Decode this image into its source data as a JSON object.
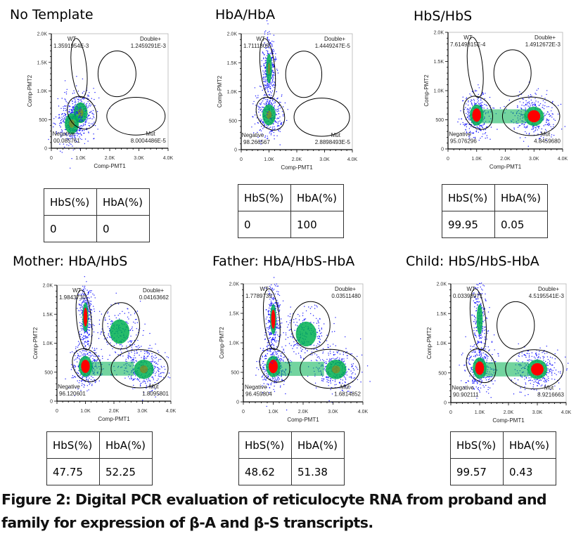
{
  "figure": {
    "caption_line1": "Figure 2: Digital PCR evaluation of reticulocyte RNA from proband and",
    "caption_line2": "family for expression of β-A and β-S transcripts."
  },
  "table_headers": [
    "HbS(%)",
    "HbA(%)"
  ],
  "colors": {
    "gate": "#000000",
    "density_low": "#1a1aff",
    "density_mid": "#00b050",
    "density_high": "#ff0000"
  },
  "chart_data": [
    {
      "type": "scatter",
      "title": "No Template",
      "xlabel": "Comp-PMT1",
      "ylabel": "Comp-PMT2",
      "xlim": [
        0,
        4000
      ],
      "ylim": [
        0,
        2000
      ],
      "xticks": [
        "0",
        "1.0K",
        "2.0K",
        "3.0K",
        "4.0K"
      ],
      "yticks": [
        "0",
        "500",
        "1.0K",
        "1.5K",
        "2.0K"
      ],
      "gates": [
        {
          "name": "WT",
          "value": "1.3591954E-3"
        },
        {
          "name": "Double+",
          "value": "1.2459291E-3"
        },
        {
          "name": "Negative",
          "value": "00.085761"
        },
        {
          "name": "Mut",
          "value": "8.0004486E-5"
        }
      ],
      "clusters": [
        {
          "x": 1000,
          "y": 620,
          "intensity": "mid"
        },
        {
          "x": 700,
          "y": 430,
          "intensity": "mid"
        }
      ],
      "table": {
        "HbS": "0",
        "HbA": "0"
      }
    },
    {
      "type": "scatter",
      "title": "HbA/HbA",
      "xlabel": "Comp-PMT1",
      "ylabel": "Comp-PMT2",
      "xlim": [
        0,
        4000
      ],
      "ylim": [
        0,
        2000
      ],
      "xticks": [
        "0",
        "1.0K",
        "2.0K",
        "3.0K",
        "4.0K"
      ],
      "yticks": [
        "0",
        "500",
        "1.0K",
        "1.5K",
        "2.0K"
      ],
      "gates": [
        {
          "name": "WT",
          "value": "1.7111809"
        },
        {
          "name": "Double+",
          "value": "1.4449247E-5"
        },
        {
          "name": "Negative",
          "value": "98.266567"
        },
        {
          "name": "Mut",
          "value": "2.8898493E-5"
        }
      ],
      "clusters": [
        {
          "x": 1000,
          "y": 600,
          "intensity": "mid"
        },
        {
          "x": 1000,
          "y": 1400,
          "intensity": "mid"
        }
      ],
      "table": {
        "HbS": "0",
        "HbA": "100"
      }
    },
    {
      "type": "scatter",
      "title": "HbS/HbS",
      "xlabel": "Comp-PMT1",
      "ylabel": "Comp-PMT2",
      "xlim": [
        0,
        4000
      ],
      "ylim": [
        0,
        2000
      ],
      "xticks": [
        "0",
        "1.0K",
        "2.0K",
        "3.0K",
        "4.0K"
      ],
      "yticks": [
        "0",
        "500",
        "1.0K",
        "1.5K",
        "2.0K"
      ],
      "gates": [
        {
          "name": "WT",
          "value": "7.6149815E-4"
        },
        {
          "name": "Double+",
          "value": "1.4912672E-3"
        },
        {
          "name": "Negative",
          "value": "95.076296"
        },
        {
          "name": "Mut",
          "value": "4.8459680"
        }
      ],
      "clusters": [
        {
          "x": 1000,
          "y": 580,
          "intensity": "high"
        },
        {
          "x": 3000,
          "y": 560,
          "intensity": "high"
        }
      ],
      "table": {
        "HbS": "99.95",
        "HbA": "0.05"
      }
    },
    {
      "type": "scatter",
      "title": "Mother: HbA/HbS",
      "xlabel": "Comp-PMT1",
      "ylabel": "Comp-PMT2",
      "xlim": [
        0,
        4000
      ],
      "ylim": [
        0,
        2000
      ],
      "xticks": [
        "0",
        "1.0K",
        "2.0K",
        "3.0K",
        "4.0K"
      ],
      "yticks": [
        "0",
        "500",
        "1.0K",
        "1.5K",
        "2.0K"
      ],
      "gates": [
        {
          "name": "WT",
          "value": "1.9843730"
        },
        {
          "name": "Double+",
          "value": "0.04163662"
        },
        {
          "name": "Negative",
          "value": "96.120601"
        },
        {
          "name": "Mut",
          "value": "1.8095801"
        }
      ],
      "clusters": [
        {
          "x": 1000,
          "y": 600,
          "intensity": "high"
        },
        {
          "x": 1000,
          "y": 1450,
          "intensity": "high"
        },
        {
          "x": 3050,
          "y": 550,
          "intensity": "mid"
        },
        {
          "x": 2200,
          "y": 1200,
          "intensity": "low"
        }
      ],
      "table": {
        "HbS": "47.75",
        "HbA": "52.25"
      }
    },
    {
      "type": "scatter",
      "title": "Father: HbA/HbS-HbA",
      "xlabel": "Comp-PMT1",
      "ylabel": "Comp-PMT2",
      "xlim": [
        0,
        4000
      ],
      "ylim": [
        0,
        2000
      ],
      "xticks": [
        "0",
        "1.0K",
        "2.0K",
        "3.0K",
        "4.0K"
      ],
      "yticks": [
        "0",
        "500",
        "1.0K",
        "1.5K",
        "2.0K"
      ],
      "gates": [
        {
          "name": "WT",
          "value": "1.7789739"
        },
        {
          "name": "Double+",
          "value": "0.03511480"
        },
        {
          "name": "Negative",
          "value": "96.459804"
        },
        {
          "name": "Mut",
          "value": "1.6814852"
        }
      ],
      "clusters": [
        {
          "x": 1000,
          "y": 600,
          "intensity": "high"
        },
        {
          "x": 1000,
          "y": 1400,
          "intensity": "high"
        },
        {
          "x": 3100,
          "y": 550,
          "intensity": "mid"
        },
        {
          "x": 2100,
          "y": 1150,
          "intensity": "low"
        }
      ],
      "table": {
        "HbS": "48.62",
        "HbA": "51.38"
      }
    },
    {
      "type": "scatter",
      "title": "Child: HbS/HbS-HbA",
      "xlabel": "Comp-PMT1",
      "ylabel": "Comp-PMT2",
      "xlim": [
        0,
        4000
      ],
      "ylim": [
        0,
        2000
      ],
      "xticks": [
        "0",
        "1.0K",
        "2.0K",
        "3.0K",
        "4.0K"
      ],
      "yticks": [
        "0",
        "500",
        "1.0K",
        "1.5K",
        "2.0K"
      ],
      "gates": [
        {
          "name": "WT",
          "value": "0.03398971"
        },
        {
          "name": "Double+",
          "value": "4.5195541E-3"
        },
        {
          "name": "Negative",
          "value": "90.902111"
        },
        {
          "name": "Mut",
          "value": "8.9216663"
        }
      ],
      "clusters": [
        {
          "x": 1000,
          "y": 580,
          "intensity": "high"
        },
        {
          "x": 3000,
          "y": 560,
          "intensity": "high"
        },
        {
          "x": 1000,
          "y": 1400,
          "intensity": "low"
        }
      ],
      "table": {
        "HbS": "99.57",
        "HbA": "0.43"
      }
    }
  ]
}
